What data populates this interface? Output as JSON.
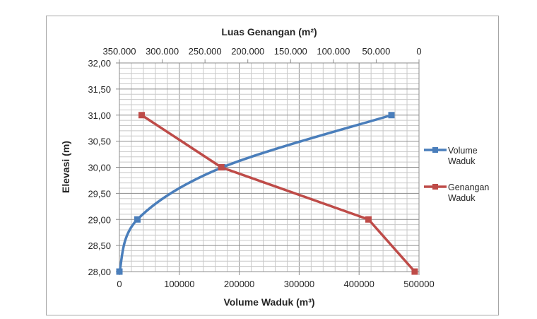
{
  "chart_data": {
    "type": "line",
    "title": "",
    "xlabel": "Volume Waduk (m³)",
    "x2label": "Luas Genangan (m²)",
    "ylabel": "Elevasi (m)",
    "xlim": [
      0,
      500000
    ],
    "x2lim": [
      350000,
      0
    ],
    "ylim": [
      28,
      32
    ],
    "x_ticks": [
      "0",
      "100000",
      "200000",
      "300000",
      "400000",
      "500000"
    ],
    "x2_ticks": [
      "350.000",
      "300.000",
      "250.000",
      "200.000",
      "150.000",
      "100.000",
      "50.000",
      "0"
    ],
    "y_ticks": [
      "28,00",
      "28,50",
      "29,00",
      "29,50",
      "30,00",
      "30,50",
      "31,00",
      "31,50",
      "32,00"
    ],
    "grid": true,
    "legend": "right",
    "series": [
      {
        "name": "Volume Waduk",
        "axis": "bottom",
        "color": "#4a7ebb",
        "smooth": true,
        "points": [
          {
            "x": 0,
            "y": 28
          },
          {
            "x": 30000,
            "y": 29
          },
          {
            "x": 172000,
            "y": 30
          },
          {
            "x": 454000,
            "y": 31
          }
        ]
      },
      {
        "name": "Genangan Waduk",
        "axis": "top",
        "color": "#be4b48",
        "smooth": false,
        "points": [
          {
            "x": 5000,
            "y": 28
          },
          {
            "x": 59000,
            "y": 29
          },
          {
            "x": 231000,
            "y": 30
          },
          {
            "x": 324000,
            "y": 31
          }
        ]
      }
    ]
  }
}
